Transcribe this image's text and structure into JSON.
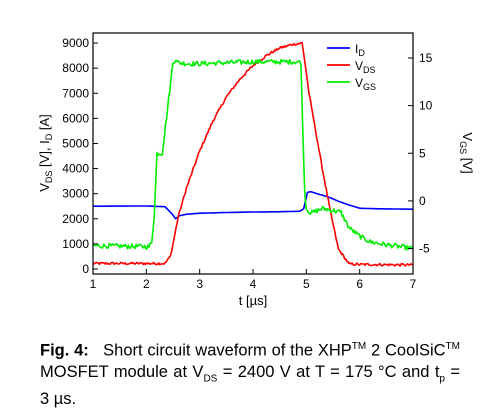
{
  "chart_data": {
    "type": "line",
    "xlabel": "t [µs]",
    "ylabel_left": {
      "parts": [
        "V",
        "DS",
        " [V], I",
        "D",
        " [A]"
      ]
    },
    "ylabel_right": {
      "parts": [
        "V",
        "GS",
        " [V]"
      ]
    },
    "xlim": [
      1,
      7
    ],
    "ylim_left": [
      -200,
      9400
    ],
    "ylim_right": [
      -7.67,
      17.62
    ],
    "x_ticks": [
      1,
      2,
      3,
      4,
      5,
      6,
      7
    ],
    "y_left_ticks": [
      0,
      1000,
      2000,
      3000,
      4000,
      5000,
      6000,
      7000,
      8000,
      9000
    ],
    "y_right_ticks": [
      -5,
      0,
      5,
      10,
      15
    ],
    "grid": false,
    "legend_position": "top-right",
    "series": [
      {
        "name": {
          "parts": [
            "I",
            "D"
          ]
        },
        "axis": "left",
        "color": "#0000ff",
        "x": [
          1.0,
          2.0,
          2.35,
          2.48,
          2.55,
          2.62,
          2.75,
          3.0,
          3.5,
          4.0,
          4.5,
          4.88,
          4.95,
          5.02,
          5.08,
          5.2,
          5.4,
          5.6,
          5.8,
          6.0,
          6.3,
          7.0
        ],
        "y": [
          2500,
          2510,
          2480,
          2200,
          2000,
          2120,
          2180,
          2220,
          2250,
          2270,
          2280,
          2300,
          2400,
          3050,
          3080,
          3000,
          2880,
          2700,
          2550,
          2420,
          2400,
          2380
        ]
      },
      {
        "name": {
          "parts": [
            "V",
            "DS"
          ]
        },
        "axis": "left",
        "color": "#ff0000",
        "x": [
          1.0,
          2.0,
          2.35,
          2.45,
          2.5,
          2.6,
          2.75,
          3.0,
          3.25,
          3.5,
          3.75,
          4.0,
          4.25,
          4.5,
          4.75,
          4.92,
          4.97,
          5.05,
          5.15,
          5.3,
          5.45,
          5.6,
          5.8,
          6.0,
          6.5,
          7.0
        ],
        "y": [
          220,
          220,
          220,
          500,
          1000,
          2100,
          3200,
          4700,
          5900,
          6850,
          7550,
          8100,
          8500,
          8800,
          8950,
          9000,
          8300,
          7000,
          5800,
          4000,
          2300,
          800,
          200,
          180,
          170,
          160
        ],
        "noise": 50
      },
      {
        "name": {
          "parts": [
            "V",
            "GS"
          ]
        },
        "axis": "right",
        "color": "#00ee00",
        "x": [
          1.0,
          2.05,
          2.1,
          2.15,
          2.2,
          2.3,
          2.4,
          2.5,
          2.55,
          2.6,
          2.8,
          3.0,
          4.0,
          4.85,
          4.9,
          4.93,
          4.97,
          5.0,
          5.08,
          5.3,
          5.5,
          5.65,
          5.8,
          6.0,
          6.2,
          6.5,
          7.0
        ],
        "y": [
          -4.7,
          -4.8,
          -4.3,
          -1.5,
          5.0,
          5.0,
          9.8,
          14.5,
          14.9,
          14.5,
          14.4,
          14.4,
          14.6,
          14.6,
          14.5,
          8.0,
          1.0,
          -0.8,
          -1.3,
          -0.8,
          -1.0,
          -1.2,
          -2.8,
          -3.7,
          -4.3,
          -4.6,
          -5.0
        ],
        "noise": 0.25
      }
    ]
  },
  "caption": {
    "label": "Fig. 4:",
    "text_1": "Short circuit waveform of the XHP",
    "tm_1": "TM",
    "text_2": " 2 CoolSiC",
    "tm_2": "TM",
    "text_3": " MOSFET module at V",
    "sub_1": "DS",
    "text_4": " = 2400 V at T = 175 °C and t",
    "sub_2": "p",
    "text_5": " = 3 µs."
  }
}
